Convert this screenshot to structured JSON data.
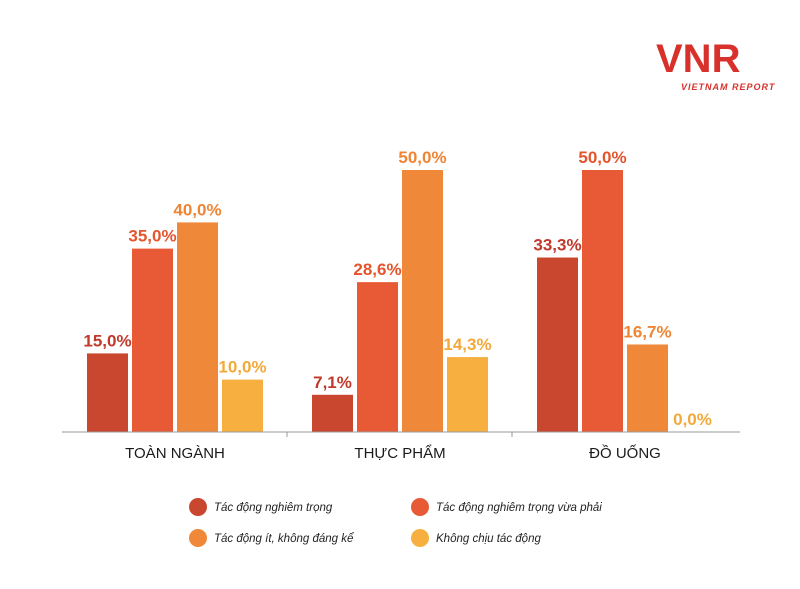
{
  "logo": {
    "main": "VNR",
    "sub": "VIETNAM REPORT"
  },
  "chart_data": {
    "type": "bar",
    "categories": [
      "TOÀN NGÀNH",
      "THỰC PHẨM",
      "ĐỒ UỐNG"
    ],
    "series": [
      {
        "name": "Tác động nghiêm trọng",
        "color": "#c9472f",
        "labelColor": "#c0392b",
        "values": [
          15.0,
          7.1,
          33.3
        ],
        "labels": [
          "15,0%",
          "7,1%",
          "33,3%"
        ]
      },
      {
        "name": "Tác động nghiêm trọng vừa phải",
        "color": "#e85a35",
        "labelColor": "#e4552e",
        "values": [
          35.0,
          28.6,
          50.0
        ],
        "labels": [
          "35,0%",
          "28,6%",
          "50,0%"
        ]
      },
      {
        "name": "Tác động ít, không đáng kể",
        "color": "#f0883a",
        "labelColor": "#ef8534",
        "values": [
          40.0,
          50.0,
          16.7
        ],
        "labels": [
          "40,0%",
          "50,0%",
          "16,7%"
        ]
      },
      {
        "name": "Không chịu tác động",
        "color": "#f7b040",
        "labelColor": "#f3a93a",
        "values": [
          10.0,
          14.3,
          0.0
        ],
        "labels": [
          "10,0%",
          "14,3%",
          "0,0%"
        ]
      }
    ],
    "ylim": [
      0,
      50
    ],
    "grid": false,
    "legend_position": "bottom"
  }
}
